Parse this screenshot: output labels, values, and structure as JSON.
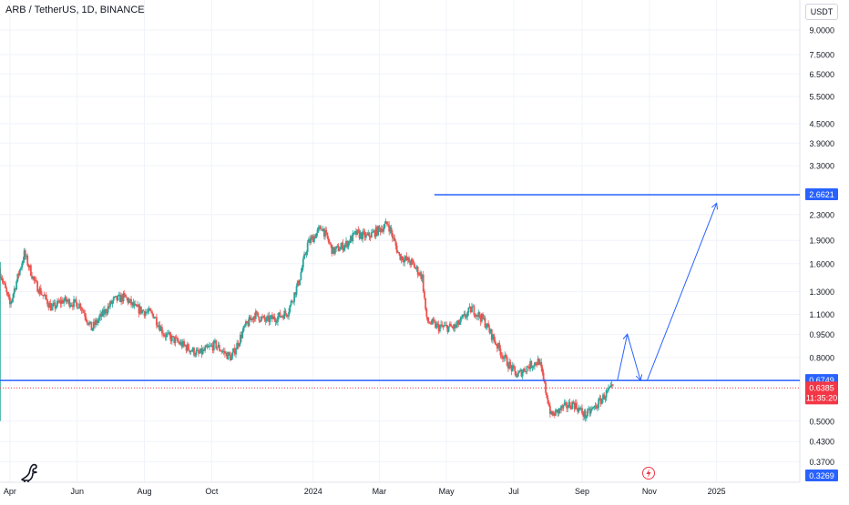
{
  "header": {
    "symbol_title": "ARB / TetherUS, 1D, BINANCE",
    "currency": "USDT"
  },
  "colors": {
    "up": "#26a69a",
    "down": "#ef5350",
    "level_line": "#2962ff",
    "current_price": "#f23645",
    "axis_text": "#131722",
    "grid": "#f0f3fa"
  },
  "icons": {
    "logo": "tradingview-dino-icon",
    "flash": "lightning-icon"
  },
  "chart_data": {
    "type": "candlestick",
    "scale": "log",
    "ylim": [
      0.3269,
      9.3
    ],
    "x_range": [
      "2023-03-23",
      "2025-03-15"
    ],
    "y_tick_labels": [
      "9.0000",
      "7.5000",
      "6.5000",
      "5.5000",
      "4.5000",
      "3.9000",
      "3.3000",
      "2.3000",
      "1.9000",
      "1.6000",
      "1.3000",
      "1.1000",
      "0.9500",
      "0.8000",
      "0.5000",
      "0.4300",
      "0.3700"
    ],
    "x_tick_labels": [
      {
        "label": "Apr",
        "date": "2023-04-01"
      },
      {
        "label": "Jun",
        "date": "2023-06-01"
      },
      {
        "label": "Aug",
        "date": "2023-08-01"
      },
      {
        "label": "Oct",
        "date": "2023-10-01"
      },
      {
        "label": "2024",
        "date": "2024-01-01"
      },
      {
        "label": "Mar",
        "date": "2024-03-01"
      },
      {
        "label": "May",
        "date": "2024-05-01"
      },
      {
        "label": "Jul",
        "date": "2024-07-01"
      },
      {
        "label": "Sep",
        "date": "2024-09-01"
      },
      {
        "label": "Nov",
        "date": "2024-11-01"
      },
      {
        "label": "2025",
        "date": "2025-01-01"
      }
    ],
    "price_path": [
      {
        "date": "2023-03-23",
        "price": 1.55
      },
      {
        "date": "2023-04-02",
        "price": 1.18
      },
      {
        "date": "2023-04-15",
        "price": 1.72
      },
      {
        "date": "2023-04-25",
        "price": 1.38
      },
      {
        "date": "2023-05-10",
        "price": 1.15
      },
      {
        "date": "2023-05-20",
        "price": 1.22
      },
      {
        "date": "2023-06-05",
        "price": 1.18
      },
      {
        "date": "2023-06-15",
        "price": 0.99
      },
      {
        "date": "2023-06-25",
        "price": 1.1
      },
      {
        "date": "2023-07-05",
        "price": 1.22
      },
      {
        "date": "2023-07-15",
        "price": 1.25
      },
      {
        "date": "2023-07-25",
        "price": 1.15
      },
      {
        "date": "2023-08-10",
        "price": 1.1
      },
      {
        "date": "2023-08-20",
        "price": 0.95
      },
      {
        "date": "2023-09-05",
        "price": 0.88
      },
      {
        "date": "2023-09-20",
        "price": 0.82
      },
      {
        "date": "2023-10-05",
        "price": 0.88
      },
      {
        "date": "2023-10-15",
        "price": 0.82
      },
      {
        "date": "2023-10-20",
        "price": 0.8
      },
      {
        "date": "2023-11-01",
        "price": 1.0
      },
      {
        "date": "2023-11-10",
        "price": 1.1
      },
      {
        "date": "2023-11-20",
        "price": 1.05
      },
      {
        "date": "2023-12-01",
        "price": 1.08
      },
      {
        "date": "2023-12-10",
        "price": 1.12
      },
      {
        "date": "2023-12-20",
        "price": 1.4
      },
      {
        "date": "2023-12-28",
        "price": 1.85
      },
      {
        "date": "2024-01-10",
        "price": 2.1
      },
      {
        "date": "2024-01-20",
        "price": 1.75
      },
      {
        "date": "2024-02-01",
        "price": 1.85
      },
      {
        "date": "2024-02-10",
        "price": 2.0
      },
      {
        "date": "2024-02-20",
        "price": 1.95
      },
      {
        "date": "2024-03-01",
        "price": 2.05
      },
      {
        "date": "2024-03-10",
        "price": 2.15
      },
      {
        "date": "2024-03-20",
        "price": 1.7
      },
      {
        "date": "2024-04-01",
        "price": 1.6
      },
      {
        "date": "2024-04-10",
        "price": 1.45
      },
      {
        "date": "2024-04-14",
        "price": 1.05
      },
      {
        "date": "2024-04-25",
        "price": 1.0
      },
      {
        "date": "2024-05-10",
        "price": 1.0
      },
      {
        "date": "2024-05-25",
        "price": 1.15
      },
      {
        "date": "2024-06-05",
        "price": 1.05
      },
      {
        "date": "2024-06-15",
        "price": 0.9
      },
      {
        "date": "2024-06-25",
        "price": 0.78
      },
      {
        "date": "2024-07-05",
        "price": 0.7
      },
      {
        "date": "2024-07-15",
        "price": 0.75
      },
      {
        "date": "2024-07-25",
        "price": 0.78
      },
      {
        "date": "2024-08-05",
        "price": 0.52
      },
      {
        "date": "2024-08-15",
        "price": 0.55
      },
      {
        "date": "2024-08-25",
        "price": 0.57
      },
      {
        "date": "2024-09-05",
        "price": 0.52
      },
      {
        "date": "2024-09-15",
        "price": 0.56
      },
      {
        "date": "2024-09-25",
        "price": 0.62
      },
      {
        "date": "2024-09-30",
        "price": 0.6385
      }
    ],
    "spike_candle": {
      "date": "2023-03-23",
      "high": 1.62,
      "low": 0.5
    },
    "horizontal_levels": [
      {
        "price": 0.6749,
        "label": "0.6749",
        "start_date": "2023-03-18"
      },
      {
        "price": 2.6621,
        "label": "2.6621",
        "start_date": "2024-04-20"
      }
    ],
    "current_price": {
      "price": 0.6385,
      "label": "0.6385",
      "countdown": "11:35:20"
    },
    "axis_low_label": {
      "price": 0.3269,
      "label": "0.3269"
    },
    "projection_arrow": [
      {
        "date": "2024-10-03",
        "price": 0.6749
      },
      {
        "date": "2024-10-12",
        "price": 0.95
      },
      {
        "date": "2024-10-24",
        "price": 0.6749
      },
      {
        "date": "2024-10-30",
        "price": 0.6749
      },
      {
        "date": "2025-01-01",
        "price": 2.5
      }
    ]
  }
}
